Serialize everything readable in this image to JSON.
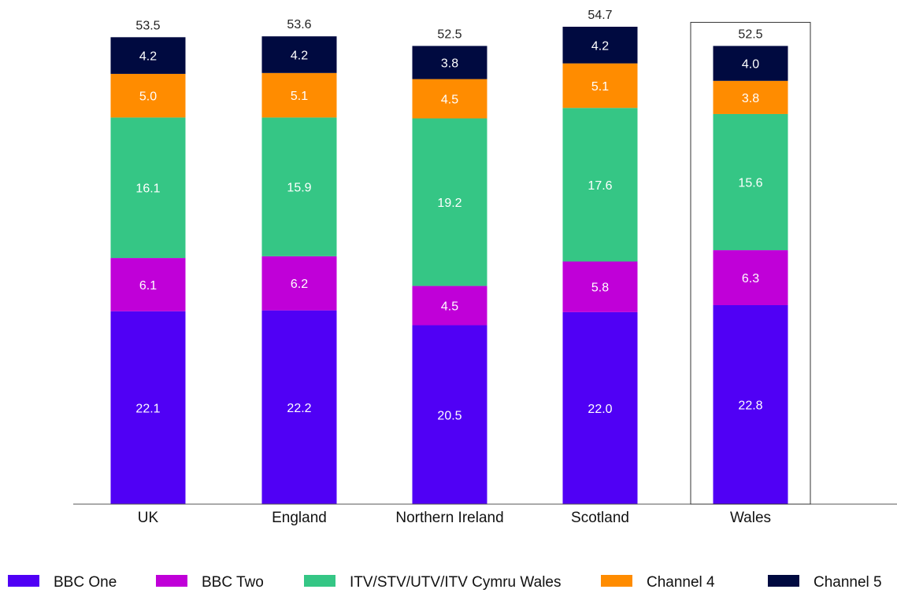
{
  "chart_data": {
    "type": "bar",
    "stacked": true,
    "categories": [
      "UK",
      "England",
      "Northern Ireland",
      "Scotland",
      "Wales"
    ],
    "highlighted_category": "Wales",
    "series": [
      {
        "name": "BBC One",
        "color": "#5000f5",
        "values": [
          22.1,
          22.2,
          20.5,
          22.0,
          22.8
        ]
      },
      {
        "name": "BBC Two",
        "color": "#c000d8",
        "values": [
          6.1,
          6.2,
          4.5,
          5.8,
          6.3
        ]
      },
      {
        "name": "ITV/STV/UTV/ITV Cymru Wales",
        "color": "#35c685",
        "values": [
          16.1,
          15.9,
          19.2,
          17.6,
          15.6
        ]
      },
      {
        "name": "Channel 4",
        "color": "#ff8c00",
        "values": [
          5.0,
          5.1,
          4.5,
          5.1,
          3.8
        ]
      },
      {
        "name": "Channel 5",
        "color": "#000a40",
        "values": [
          4.2,
          4.2,
          3.8,
          4.2,
          4.0
        ]
      }
    ],
    "totals": [
      "53.5",
      "53.6",
      "52.5",
      "54.7",
      "52.5"
    ],
    "ylim": [
      0,
      54.7
    ],
    "grid": false,
    "legend_position": "bottom"
  }
}
